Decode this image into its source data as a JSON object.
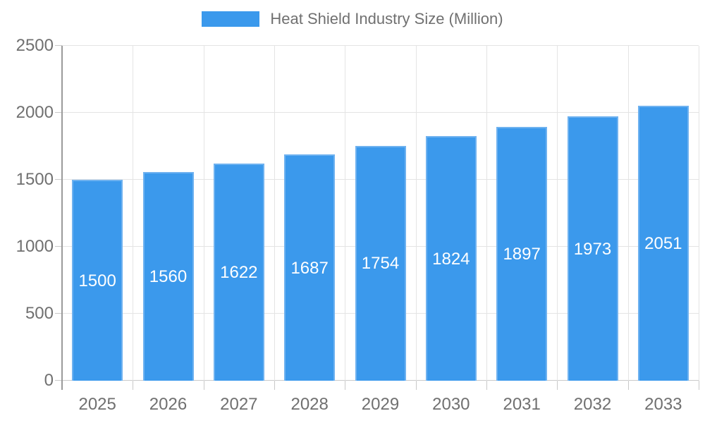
{
  "legend": {
    "position": "top",
    "label": "Heat Shield Industry Size (Million)"
  },
  "chart_data": {
    "type": "bar",
    "title": "Heat Shield Industry Size (Million)",
    "xlabel": "",
    "ylabel": "",
    "categories": [
      "2025",
      "2026",
      "2027",
      "2028",
      "2029",
      "2030",
      "2031",
      "2032",
      "2033"
    ],
    "series": [
      {
        "name": "Heat Shield Industry Size (Million)",
        "values": [
          1500,
          1560,
          1622,
          1687,
          1754,
          1824,
          1897,
          1973,
          2051
        ]
      }
    ],
    "value_labels_shown": true,
    "ylim": [
      0,
      2500
    ],
    "yticks": [
      0,
      500,
      1000,
      1500,
      2000,
      2500
    ],
    "grid": true,
    "legend_position": "top",
    "colors": {
      "bar_fill": "#3B99EC",
      "bar_border": "#6FB2F0",
      "value_label": "#FFFFFF",
      "axis_text": "#707070",
      "gridline": "#E4E4E4",
      "tick": "#C9C9C9",
      "y_axis_line": "#9A9A9A"
    }
  }
}
